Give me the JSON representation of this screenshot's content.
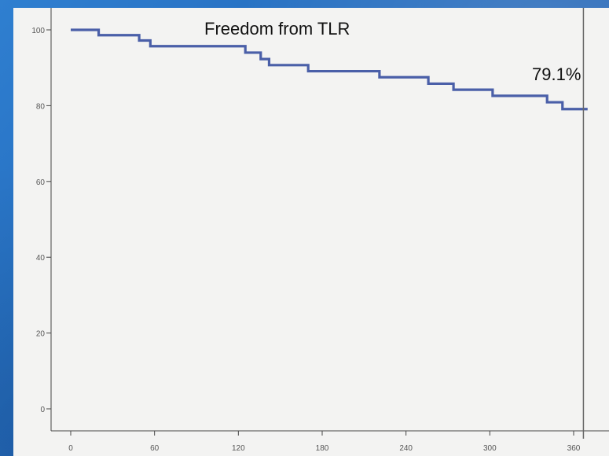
{
  "chart_data": {
    "type": "line",
    "title": "Freedom from TLR",
    "xlabel": "",
    "ylabel": "",
    "xlim": [
      0,
      370
    ],
    "ylim": [
      -5,
      103
    ],
    "x_ticks": [
      0,
      60,
      120,
      180,
      240,
      300,
      360
    ],
    "x_tick_labels": [
      "0",
      "60",
      "120",
      "180",
      "240",
      "300",
      "360"
    ],
    "y_ticks": [
      0,
      20,
      40,
      60,
      80,
      100
    ],
    "y_tick_labels": [
      "0",
      "20",
      "40",
      "60",
      "80",
      "100"
    ],
    "series": [
      {
        "color": "#4a5fa8",
        "step": true,
        "points": [
          {
            "x": 0,
            "y": 100
          },
          {
            "x": 20,
            "y": 98.6
          },
          {
            "x": 49,
            "y": 97.2
          },
          {
            "x": 57,
            "y": 95.7
          },
          {
            "x": 125,
            "y": 94.0
          },
          {
            "x": 136,
            "y": 92.3
          },
          {
            "x": 142,
            "y": 90.7
          },
          {
            "x": 170,
            "y": 89.1
          },
          {
            "x": 221,
            "y": 87.5
          },
          {
            "x": 256,
            "y": 85.8
          },
          {
            "x": 274,
            "y": 84.2
          },
          {
            "x": 302,
            "y": 82.6
          },
          {
            "x": 341,
            "y": 80.9
          },
          {
            "x": 352,
            "y": 79.1
          },
          {
            "x": 370,
            "y": 79.1
          }
        ]
      }
    ],
    "reference_line_x": 367,
    "annotation": "79.1%",
    "grid": false
  }
}
